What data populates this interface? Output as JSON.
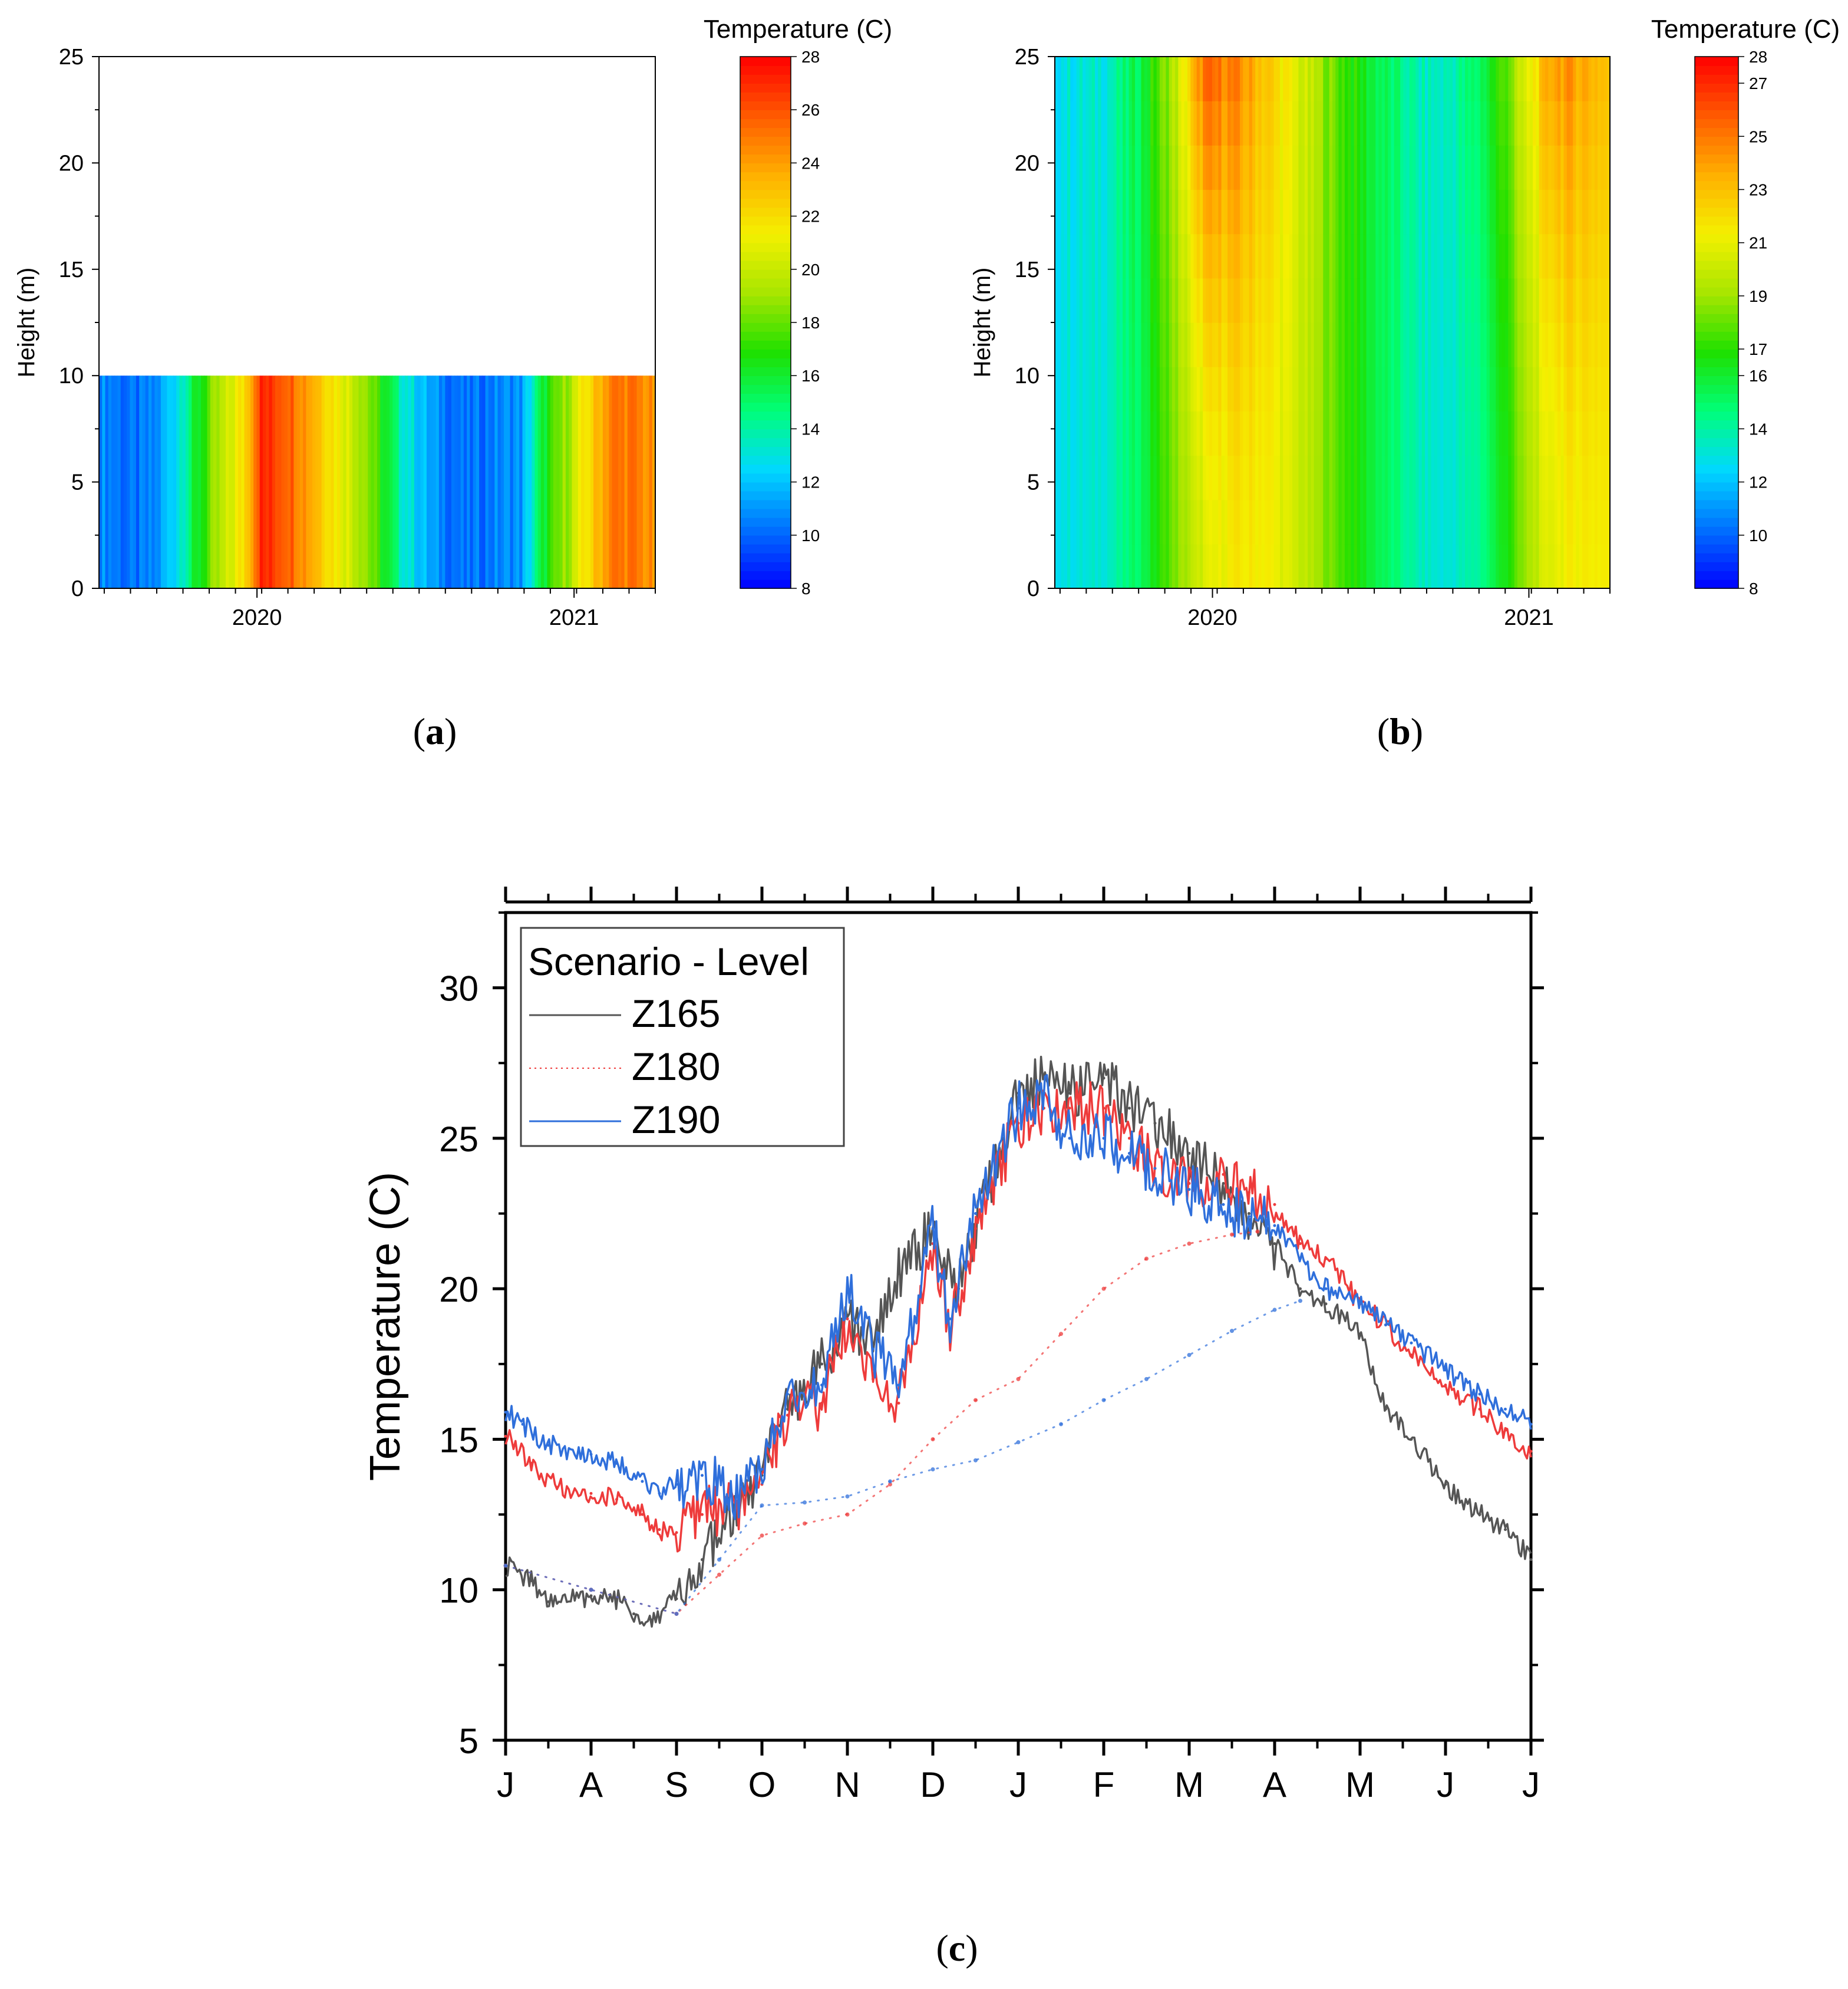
{
  "figure": {
    "panels": [
      {
        "caption_letter": "a"
      },
      {
        "caption_letter": "b"
      },
      {
        "caption_letter": "c"
      }
    ]
  },
  "colors": {
    "Z165": "#555555",
    "Z180": "#ee3b3b",
    "Z190": "#2f6fdb",
    "colormap": [
      "#0000ff",
      "#0070ff",
      "#00d8ff",
      "#00ff7a",
      "#1ee000",
      "#a8e600",
      "#f4f000",
      "#ffb000",
      "#ff5a00",
      "#ff0000"
    ]
  },
  "chart_data": [
    {
      "type": "heatmap",
      "panel": "a",
      "ylabel": "Height (m)",
      "colorbar_title": "Temperature (C)",
      "colorbar_ticks": [
        "8",
        "10",
        "12",
        "14",
        "16",
        "18",
        "20",
        "22",
        "24",
        "26",
        "28"
      ],
      "colorbar_range": [
        8,
        28
      ],
      "yticks": [
        "0",
        "5",
        "10",
        "15",
        "20",
        "25"
      ],
      "ylim": [
        0,
        25
      ],
      "xticks": [
        "2020",
        "2021"
      ],
      "xtick_positions": [
        0.284,
        0.854
      ],
      "data_height_max": 10,
      "time_fraction": [
        0.0,
        0.06,
        0.1,
        0.14,
        0.2,
        0.26,
        0.29,
        0.34,
        0.4,
        0.48,
        0.54,
        0.6,
        0.66,
        0.7,
        0.76,
        0.8,
        0.84,
        0.88,
        0.92,
        0.96,
        1.0
      ],
      "temperature": [
        11,
        10,
        10.5,
        13,
        18,
        22,
        27,
        26,
        23,
        19,
        14,
        11,
        10,
        10.5,
        11,
        16,
        19,
        22,
        25,
        25,
        24
      ]
    },
    {
      "type": "heatmap",
      "panel": "b",
      "ylabel": "Height (m)",
      "colorbar_title": "Temperature (C)",
      "colorbar_ticks": [
        "8",
        "10",
        "12",
        "14",
        "16",
        "17",
        "19",
        "21",
        "23",
        "25",
        "27",
        "28"
      ],
      "colorbar_range": [
        8,
        28
      ],
      "yticks": [
        "0",
        "5",
        "10",
        "15",
        "20",
        "25"
      ],
      "ylim": [
        0,
        25
      ],
      "xticks": [
        "2020",
        "2021"
      ],
      "xtick_positions": [
        0.284,
        0.854
      ],
      "data_height_max": 25,
      "time_fraction": [
        0.0,
        0.06,
        0.1,
        0.16,
        0.22,
        0.27,
        0.32,
        0.38,
        0.44,
        0.52,
        0.6,
        0.66,
        0.7,
        0.76,
        0.82,
        0.86,
        0.9,
        0.95,
        1.0
      ],
      "bottom_temperature": [
        13,
        13,
        13.5,
        15.5,
        18.5,
        20.5,
        21.5,
        21.5,
        20,
        17.5,
        15,
        13.5,
        13,
        14,
        17,
        19.5,
        21,
        21.5,
        21.5
      ],
      "top_temperature": [
        13,
        13,
        13.5,
        16,
        20,
        25.5,
        25,
        23,
        20.5,
        17.5,
        15,
        13.5,
        13.5,
        15,
        18.5,
        21.5,
        24.5,
        24,
        23
      ]
    },
    {
      "type": "line",
      "panel": "c",
      "ylabel": "Temperature (C)",
      "ylim": [
        5,
        32.5
      ],
      "yticks": [
        "5",
        "10",
        "15",
        "20",
        "25",
        "30"
      ],
      "xticks": [
        "J",
        "A",
        "S",
        "O",
        "N",
        "D",
        "J",
        "F",
        "M",
        "A",
        "M",
        "J",
        "J"
      ],
      "xlim": [
        0,
        12
      ],
      "legend": {
        "title": "Scenario - Level",
        "position": "top-left",
        "entries": [
          "Z165",
          "Z180",
          "Z190"
        ]
      },
      "series": [
        {
          "name": "Z165",
          "style": "solid",
          "x": [
            0,
            0.3,
            0.5,
            1,
            1.3,
            1.5,
            1.7,
            2,
            2.3,
            2.7,
            3,
            3.3,
            3.7,
            4,
            4.3,
            4.6,
            5,
            5.3,
            5.6,
            6,
            6.3,
            6.6,
            7,
            7.3,
            7.6,
            8,
            8.4,
            8.7,
            9,
            9.3,
            9.6,
            10,
            10.3,
            10.6,
            11,
            11.4,
            11.7,
            12
          ],
          "y": [
            10.8,
            10.3,
            9.6,
            9.8,
            9.7,
            9.2,
            9.0,
            9.7,
            11.0,
            12.5,
            13.8,
            16.0,
            17.5,
            19.0,
            18.0,
            20.5,
            22.0,
            20.0,
            23.0,
            26.5,
            27.0,
            26.5,
            27.0,
            26.0,
            25.5,
            24.5,
            23.5,
            22.5,
            21.5,
            20.0,
            19.5,
            18.5,
            16.0,
            15.0,
            13.5,
            12.5,
            12.0,
            11.0
          ]
        },
        {
          "name": "Z180",
          "style": "solid",
          "x": [
            0,
            0.3,
            0.6,
            1,
            1.3,
            1.6,
            1.8,
            2,
            2.3,
            2.7,
            3,
            3.3,
            3.7,
            4,
            4.3,
            4.6,
            5,
            5.2,
            5.5,
            6,
            6.3,
            6.6,
            7,
            7.3,
            7.6,
            8,
            8.4,
            8.7,
            9,
            9.3,
            9.6,
            10,
            10.3,
            10.6,
            11,
            11.4,
            11.7,
            12
          ],
          "y": [
            15.1,
            14.2,
            13.4,
            13.2,
            13.0,
            12.5,
            12.0,
            11.9,
            12.5,
            12.8,
            13.5,
            15.8,
            16.2,
            19.0,
            17.0,
            16.2,
            21.5,
            18.5,
            22.0,
            25.5,
            26.0,
            26.0,
            26.0,
            25.0,
            24.0,
            23.5,
            23.8,
            23.2,
            22.8,
            21.5,
            21.0,
            19.5,
            18.8,
            17.8,
            16.8,
            16.0,
            15.3,
            14.6
          ]
        },
        {
          "name": "Z190",
          "style": "solid",
          "x": [
            0,
            0.2,
            0.5,
            1,
            1.3,
            1.6,
            1.8,
            2,
            2.3,
            2.7,
            3,
            3.3,
            3.7,
            4,
            4.3,
            4.6,
            5,
            5.2,
            5.5,
            6,
            6.3,
            6.6,
            7,
            7.3,
            7.6,
            8,
            8.4,
            8.7,
            9,
            9.3,
            9.6,
            10,
            10.3,
            10.6,
            11,
            11.4,
            11.7,
            12
          ],
          "y": [
            15.9,
            15.5,
            14.8,
            14.5,
            14.2,
            13.6,
            13.2,
            13.5,
            13.8,
            13.2,
            14.0,
            16.5,
            16.8,
            20.0,
            18.0,
            16.8,
            22.0,
            19.0,
            22.5,
            26.0,
            26.5,
            25.0,
            25.0,
            24.5,
            24.0,
            23.3,
            22.8,
            22.4,
            22.1,
            21.0,
            20.0,
            19.6,
            18.8,
            18.2,
            17.3,
            16.5,
            16.0,
            15.5
          ]
        },
        {
          "name": "Z180 (dotted)",
          "style": "dotted",
          "color_of": "Z180",
          "x": [
            0,
            1,
            2,
            2.5,
            3,
            3.5,
            4,
            4.5,
            5,
            5.5,
            6,
            6.5,
            7,
            7.5,
            8,
            8.5,
            8.8
          ],
          "y": [
            10.8,
            10.0,
            9.2,
            10.5,
            11.8,
            12.2,
            12.5,
            13.5,
            15.0,
            16.3,
            17.0,
            18.5,
            20.0,
            21.0,
            21.5,
            21.8,
            21.9
          ]
        },
        {
          "name": "Z190 (dotted)",
          "style": "dotted",
          "color_of": "Z190",
          "x": [
            0,
            1,
            2,
            2.5,
            3,
            3.5,
            4,
            4.5,
            5,
            5.5,
            6,
            6.5,
            7,
            7.5,
            8,
            8.5,
            9,
            9.3
          ],
          "y": [
            10.8,
            10.0,
            9.2,
            11.0,
            12.8,
            12.9,
            13.1,
            13.6,
            14.0,
            14.3,
            14.9,
            15.5,
            16.3,
            17.0,
            17.8,
            18.6,
            19.3,
            19.6
          ]
        }
      ]
    }
  ]
}
